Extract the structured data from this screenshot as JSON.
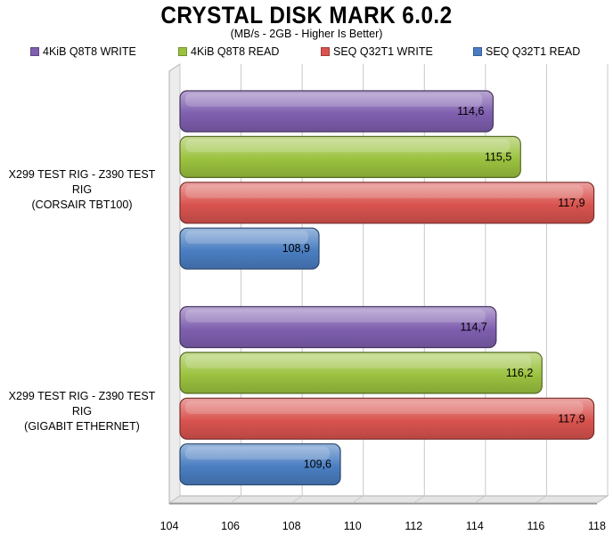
{
  "chart_data": {
    "type": "bar",
    "orientation": "horizontal",
    "title": "CRYSTAL DISK MARK 6.0.2",
    "subtitle": "(MB/s - 2GB - Higher Is Better)",
    "categories": [
      [
        "X299 TEST RIG - Z390 TEST RIG",
        "(CORSAIR TBT100)"
      ],
      [
        "X299 TEST RIG - Z390 TEST RIG",
        "(GIGABIT ETHERNET)"
      ]
    ],
    "series": [
      {
        "name": "4KiB Q8T8 WRITE",
        "color": "#7F5FAF",
        "values": [
          114.6,
          114.7
        ],
        "labels": [
          "114,6",
          "114,7"
        ]
      },
      {
        "name": "4KiB Q8T8 READ",
        "color": "#9BC23F",
        "values": [
          115.5,
          116.2
        ],
        "labels": [
          "115,5",
          "116,2"
        ]
      },
      {
        "name": "SEQ Q32T1 WRITE",
        "color": "#D9534F",
        "values": [
          117.9,
          117.9
        ],
        "labels": [
          "117,9",
          "117,9"
        ]
      },
      {
        "name": "SEQ Q32T1 READ",
        "color": "#4A7EC2",
        "values": [
          108.9,
          109.6
        ],
        "labels": [
          "108,9",
          "109,6"
        ]
      }
    ],
    "xlim": [
      104,
      118
    ],
    "xticks": [
      "104",
      "106",
      "108",
      "110",
      "112",
      "114",
      "116",
      "118"
    ],
    "grid": true,
    "legend_position": "top"
  }
}
